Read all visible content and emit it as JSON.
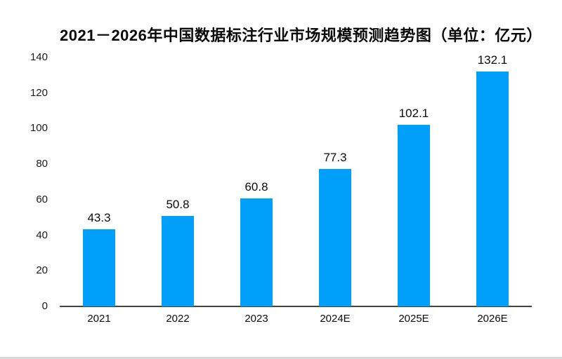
{
  "page": {
    "background": "#ffffff",
    "bottom_edge_color": "#d9d9d9"
  },
  "chart_data": {
    "type": "bar",
    "title": "2021－2026年中国数据标注行业市场规模预测趋势图（单位：亿元）",
    "categories": [
      "2021",
      "2022",
      "2023",
      "2024E",
      "2025E",
      "2026E"
    ],
    "values": [
      43.3,
      50.8,
      60.8,
      77.3,
      102.1,
      132.1
    ],
    "value_labels": [
      "43.3",
      "50.8",
      "60.8",
      "77.3",
      "102.1",
      "132.1"
    ],
    "xlabel": "",
    "ylabel": "",
    "ylim": [
      0,
      140
    ],
    "yticks": [
      0,
      20,
      40,
      60,
      80,
      100,
      120,
      140
    ],
    "grid": false,
    "legend": false,
    "bar_color": "#00A0FA",
    "axis_color": "#444444",
    "title_color": "#0a0a0a",
    "tick_label_color": "#1a1a1a",
    "value_label_color": "#0a0a0a"
  }
}
